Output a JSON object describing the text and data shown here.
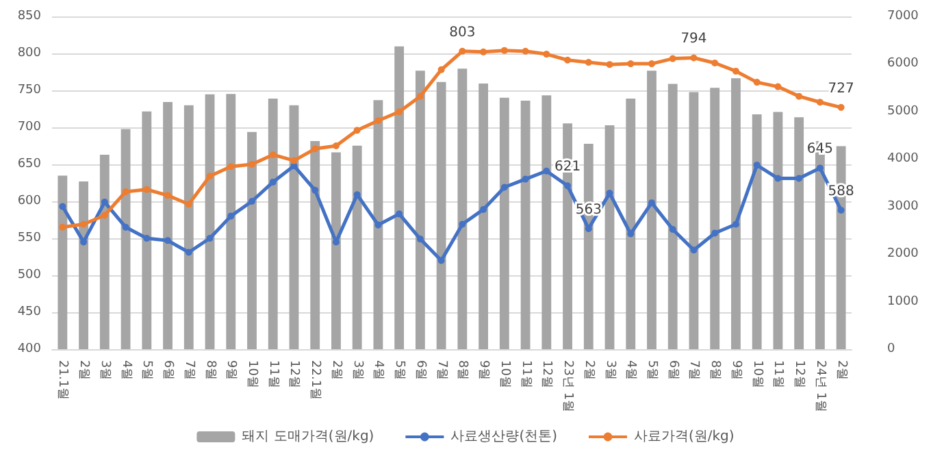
{
  "chart_data": {
    "type": "bar",
    "categories": [
      "21.1월",
      "2월",
      "3월",
      "4월",
      "5월",
      "6월",
      "7월",
      "8월",
      "9월",
      "10월",
      "11월",
      "12월",
      "22.1월",
      "2월",
      "3월",
      "4월",
      "5월",
      "6월",
      "7월",
      "8월",
      "9월",
      "10월",
      "11월",
      "12월",
      "23년 1월",
      "2월",
      "3월",
      "4월",
      "5월",
      "6월",
      "7월",
      "8월",
      "9월",
      "10월",
      "11월",
      "12월",
      "24년 1월",
      "2월"
    ],
    "series": [
      {
        "name": "돼지 도매가격(원/kg)",
        "axis": "y2",
        "color": "#a5a5a5",
        "values": [
          3650,
          3530,
          4090,
          4630,
          5000,
          5200,
          5130,
          5360,
          5370,
          4570,
          5270,
          5130,
          4380,
          4140,
          4280,
          5240,
          6370,
          5860,
          5620,
          5900,
          5590,
          5290,
          5230,
          5340,
          4750,
          4320,
          4710,
          5270,
          5860,
          5580,
          5410,
          5500,
          5700,
          4940,
          4990,
          4880,
          4380,
          4270
        ]
      },
      {
        "name": "사료생산량(천톤)",
        "type": "line",
        "color": "#4472c4",
        "values": [
          593,
          545,
          599,
          565,
          550,
          547,
          531,
          550,
          580,
          600,
          626,
          648,
          615,
          545,
          609,
          568,
          583,
          549,
          520,
          569,
          589,
          619,
          630,
          641,
          621,
          563,
          611,
          556,
          598,
          562,
          534,
          557,
          569,
          649,
          631,
          631,
          645,
          588
        ],
        "value_labels": [
          null,
          null,
          null,
          null,
          null,
          null,
          null,
          null,
          null,
          null,
          null,
          null,
          null,
          null,
          null,
          null,
          null,
          null,
          null,
          null,
          null,
          null,
          null,
          null,
          "621",
          "563",
          null,
          null,
          null,
          null,
          null,
          null,
          null,
          null,
          null,
          null,
          "645",
          "588"
        ]
      },
      {
        "name": "사료가격(원/kg)",
        "type": "line",
        "color": "#ed7d31",
        "values": [
          565,
          569,
          581,
          613,
          616,
          608,
          596,
          634,
          647,
          650,
          663,
          655,
          671,
          675,
          696,
          709,
          721,
          742,
          778,
          803,
          802,
          804,
          803,
          799,
          791,
          788,
          785,
          786,
          786,
          793,
          794,
          787,
          776,
          761,
          755,
          742,
          734,
          727
        ],
        "value_labels": [
          null,
          null,
          null,
          null,
          null,
          null,
          null,
          null,
          null,
          null,
          null,
          null,
          null,
          null,
          null,
          null,
          null,
          null,
          null,
          "803",
          null,
          null,
          null,
          null,
          null,
          null,
          null,
          null,
          null,
          null,
          "794",
          null,
          null,
          null,
          null,
          null,
          null,
          "727"
        ]
      }
    ],
    "ylim": [
      400,
      850
    ],
    "yticks": [
      400,
      450,
      500,
      550,
      600,
      650,
      700,
      750,
      800,
      850
    ],
    "y2lim": [
      0,
      7000
    ],
    "y2ticks": [
      0,
      1000,
      2000,
      3000,
      4000,
      5000,
      6000,
      7000
    ],
    "grid": "y",
    "legend": "bottom",
    "marker": "circle",
    "line_style": "solid"
  }
}
